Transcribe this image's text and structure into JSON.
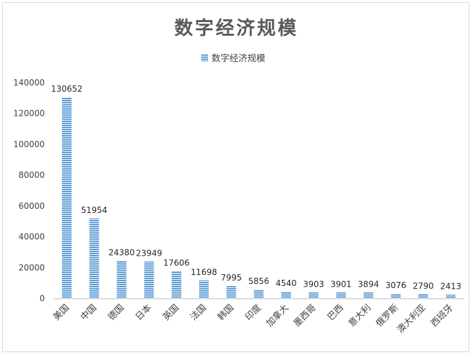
{
  "chart_data": {
    "type": "bar",
    "title": "数字经济规模",
    "legend": {
      "position": "top",
      "entries": [
        "数字经济规模"
      ]
    },
    "series": [
      {
        "name": "数字经济规模",
        "values": [
          130652,
          51954,
          24380,
          23949,
          17606,
          11698,
          7995,
          5856,
          4540,
          3903,
          3901,
          3894,
          3076,
          2790,
          2413
        ]
      }
    ],
    "categories": [
      "美国",
      "中国",
      "德国",
      "日本",
      "英国",
      "法国",
      "韩国",
      "印度",
      "加拿大",
      "墨西哥",
      "巴西",
      "意大利",
      "俄罗斯",
      "澳大利亚",
      "西班牙"
    ],
    "ylim": [
      0,
      140000
    ],
    "yticks": [
      0,
      20000,
      40000,
      60000,
      80000,
      100000,
      120000,
      140000
    ],
    "grid": false,
    "colors": {
      "bar": "#5b9bd5",
      "bar_stripe": "#ffffff"
    }
  }
}
